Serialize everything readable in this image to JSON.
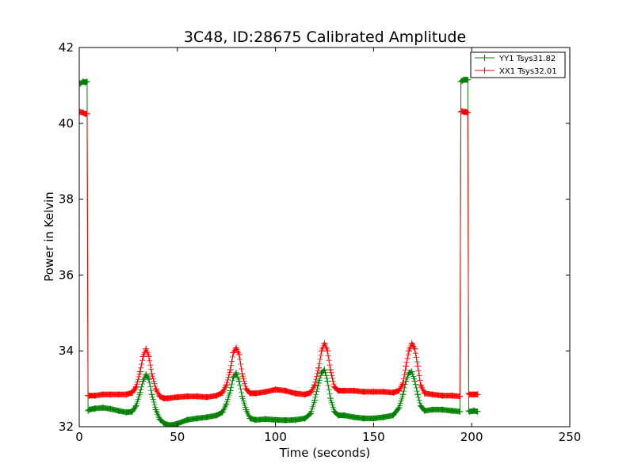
{
  "chart_data": {
    "type": "line",
    "title": "3C48, ID:28675 Calibrated Amplitude",
    "xlabel": "Time (seconds)",
    "ylabel": "Power in Kelvin",
    "xlim": [
      0,
      250
    ],
    "ylim": [
      32,
      42
    ],
    "xticks": [
      "0",
      "50",
      "100",
      "150",
      "200",
      "250"
    ],
    "yticks": [
      "32",
      "34",
      "36",
      "38",
      "40",
      "42"
    ],
    "grid": false,
    "legend_position": "top-right",
    "marker": "plus",
    "series": [
      {
        "name": "YY1 Tsys31.82",
        "color": "#008000",
        "x": [
          0.5,
          2,
          3,
          4,
          4.5,
          5,
          8,
          12,
          16,
          20,
          24,
          27,
          29,
          31,
          32.5,
          34,
          35.5,
          37,
          39,
          41,
          43,
          45,
          47,
          50,
          55,
          60,
          65,
          70,
          73,
          75,
          77,
          78.5,
          80,
          81.5,
          83,
          85,
          87,
          90,
          95,
          100,
          105,
          110,
          115,
          118,
          120,
          122,
          123.5,
          125,
          126.5,
          128,
          130,
          132,
          135,
          140,
          145,
          150,
          155,
          160,
          163,
          165,
          166.5,
          168,
          169.5,
          171,
          172.5,
          174,
          176,
          180,
          185,
          190,
          194,
          194.5,
          195,
          196,
          197,
          198,
          198.5,
          199,
          201,
          203
        ],
        "y": [
          41.05,
          41.1,
          41.08,
          41.1,
          32.42,
          32.45,
          32.48,
          32.5,
          32.47,
          32.42,
          32.38,
          32.4,
          32.55,
          32.9,
          33.2,
          33.38,
          33.25,
          32.85,
          32.45,
          32.2,
          32.1,
          32.05,
          32.04,
          32.08,
          32.18,
          32.22,
          32.25,
          32.3,
          32.38,
          32.6,
          32.95,
          33.3,
          33.42,
          33.2,
          32.8,
          32.45,
          32.22,
          32.18,
          32.2,
          32.18,
          32.17,
          32.18,
          32.22,
          32.35,
          32.7,
          33.15,
          33.42,
          33.5,
          33.2,
          32.75,
          32.4,
          32.3,
          32.3,
          32.25,
          32.22,
          32.22,
          32.25,
          32.3,
          32.5,
          32.85,
          33.2,
          33.42,
          33.45,
          33.2,
          32.85,
          32.55,
          32.42,
          32.45,
          32.45,
          32.42,
          32.4,
          41.1,
          41.12,
          41.15,
          41.15,
          41.15,
          32.42,
          32.4,
          32.42,
          32.4
        ]
      },
      {
        "name": "XX1 Tsys32.01",
        "color": "#ff0000",
        "x": [
          0.5,
          2,
          3,
          4,
          4.5,
          5,
          8,
          12,
          16,
          20,
          24,
          27,
          29,
          31,
          32.5,
          34,
          35.5,
          37,
          39,
          41,
          43,
          45,
          50,
          55,
          60,
          65,
          70,
          73,
          75,
          77,
          78.5,
          80,
          81.5,
          83,
          85,
          87,
          90,
          95,
          100,
          105,
          110,
          115,
          118,
          120,
          122,
          123.5,
          125,
          126.5,
          128,
          130,
          132,
          135,
          140,
          145,
          150,
          155,
          160,
          163,
          165,
          166.5,
          168,
          169.5,
          171,
          172.5,
          174,
          176,
          180,
          185,
          190,
          194,
          194.5,
          195,
          196,
          197,
          198,
          198.5,
          199,
          201,
          203
        ],
        "y": [
          40.3,
          40.28,
          40.25,
          40.25,
          32.82,
          32.82,
          32.82,
          32.85,
          32.85,
          32.85,
          32.85,
          32.9,
          33.05,
          33.45,
          33.85,
          34.05,
          33.85,
          33.4,
          33.0,
          32.8,
          32.75,
          32.75,
          32.78,
          32.8,
          32.8,
          32.78,
          32.82,
          32.9,
          33.1,
          33.5,
          33.95,
          34.08,
          33.9,
          33.4,
          33.0,
          32.88,
          32.88,
          32.92,
          32.98,
          32.95,
          32.88,
          32.85,
          32.9,
          33.1,
          33.55,
          34.0,
          34.2,
          34.0,
          33.5,
          33.05,
          32.95,
          32.95,
          32.95,
          32.92,
          32.92,
          32.92,
          32.9,
          32.95,
          33.15,
          33.6,
          34.0,
          34.2,
          34.05,
          33.6,
          33.1,
          32.88,
          32.85,
          32.82,
          32.82,
          32.8,
          40.3,
          40.32,
          40.3,
          40.3,
          40.28,
          32.88,
          32.85,
          32.85,
          32.85
        ]
      }
    ]
  }
}
